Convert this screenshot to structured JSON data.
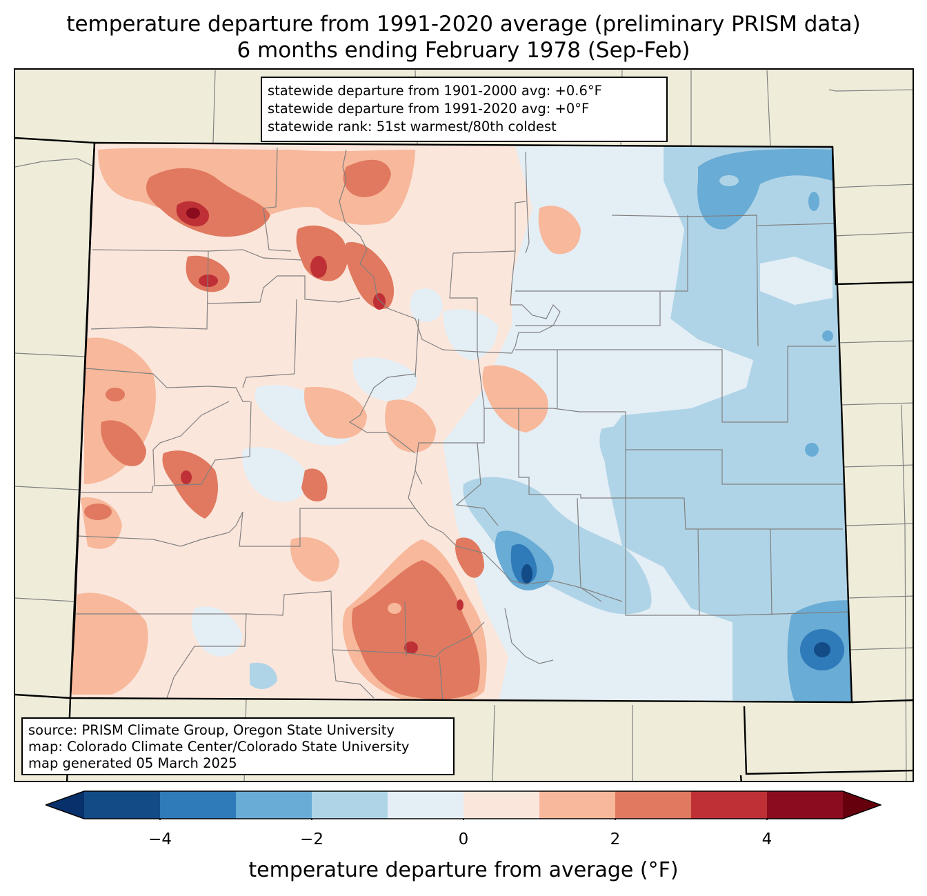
{
  "title": {
    "line1": "temperature departure from 1991-2020 average (preliminary PRISM data)",
    "line2": "6 months ending February 1978 (Sep-Feb)"
  },
  "stats_box": {
    "line1": "statewide departure from 1901-2000 avg: +0.6°F",
    "line2": "statewide departure from 1991-2020 avg: +0°F",
    "line3": "statewide rank: 51st warmest/80th coldest"
  },
  "source_box": {
    "line1": "source: PRISM Climate Group, Oregon State University",
    "line2": "map: Colorado Climate Center/Colorado State University",
    "line3": "map generated 05 March 2025"
  },
  "colorbar": {
    "label": "temperature departure from average (°F)",
    "ticks": [
      "−4",
      "−2",
      "0",
      "2",
      "4"
    ],
    "tick_values": [
      -4,
      -2,
      0,
      2,
      4
    ],
    "range": [
      -5,
      5
    ],
    "bin_width": 1,
    "extend": "both",
    "under_color": "#08306b",
    "over_color": "#67000d",
    "colors": [
      "#134b87",
      "#2f7ab9",
      "#69acd5",
      "#b0d4e7",
      "#e4eef5",
      "#fbe6dc",
      "#f7b89b",
      "#e0795f",
      "#be3036",
      "#8a0c1e"
    ]
  },
  "map_colors": {
    "land_outside": "#efedda",
    "county_line": "#808080",
    "state_line": "#000000"
  }
}
